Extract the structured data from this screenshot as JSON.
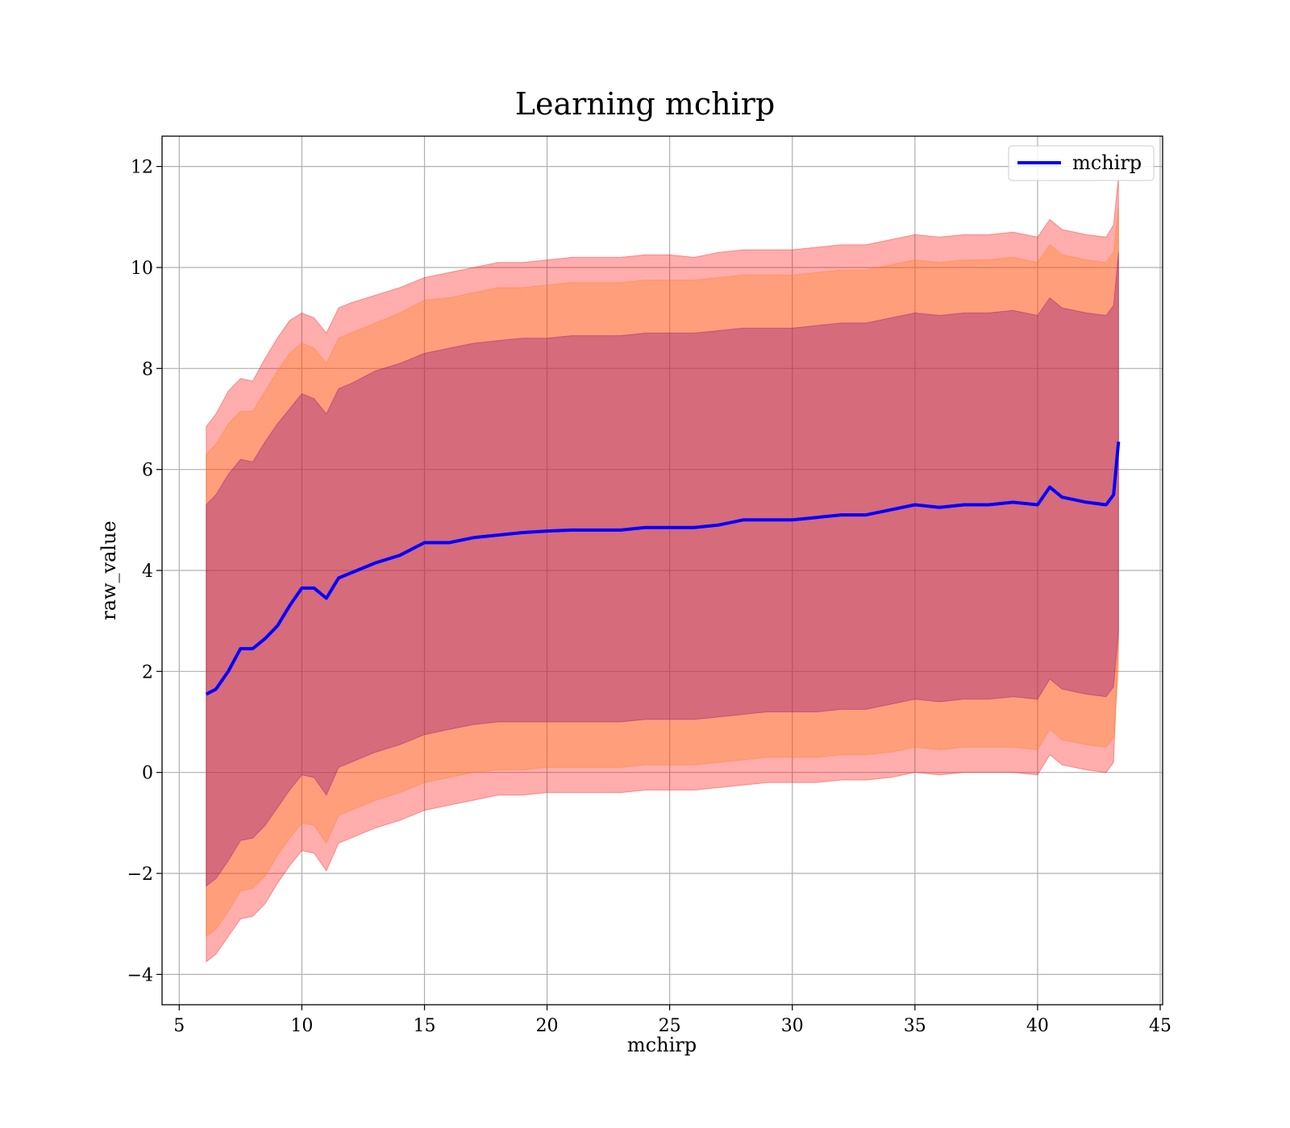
{
  "chart_data": {
    "type": "area",
    "title": "Learning mchirp",
    "xlabel": "mchirp",
    "ylabel": "raw_value",
    "xlim": [
      4.3,
      45.1
    ],
    "ylim": [
      -4.6,
      12.6
    ],
    "xticks": [
      5,
      10,
      15,
      20,
      25,
      30,
      35,
      40,
      45
    ],
    "yticks": [
      -4,
      -2,
      0,
      2,
      4,
      6,
      8,
      10,
      12
    ],
    "xtick_labels": [
      "5",
      "10",
      "15",
      "20",
      "25",
      "30",
      "35",
      "40",
      "45"
    ],
    "ytick_labels": [
      "−4",
      "−2",
      "0",
      "2",
      "4",
      "6",
      "8",
      "10",
      "12"
    ],
    "grid": true,
    "legend": {
      "position": "top-right",
      "entries": [
        "mchirp"
      ]
    },
    "series": [
      {
        "name": "mchirp",
        "kind": "line",
        "color": "#0000ff",
        "x": [
          6.1,
          6.5,
          7.0,
          7.5,
          8.0,
          8.5,
          9.0,
          9.5,
          10.0,
          10.5,
          11.0,
          11.5,
          12.0,
          13.0,
          14.0,
          15.0,
          16.0,
          17.0,
          18.0,
          19.0,
          20.0,
          21.0,
          22.0,
          23.0,
          24.0,
          25.0,
          26.0,
          27.0,
          28.0,
          29.0,
          30.0,
          31.0,
          32.0,
          33.0,
          34.0,
          35.0,
          36.0,
          37.0,
          38.0,
          39.0,
          40.0,
          40.5,
          41.0,
          42.0,
          42.8,
          43.1,
          43.3
        ],
        "y": [
          1.55,
          1.65,
          2.0,
          2.45,
          2.45,
          2.65,
          2.9,
          3.3,
          3.65,
          3.65,
          3.45,
          3.85,
          3.95,
          4.15,
          4.3,
          4.55,
          4.55,
          4.65,
          4.7,
          4.75,
          4.78,
          4.8,
          4.8,
          4.8,
          4.85,
          4.85,
          4.85,
          4.9,
          5.0,
          5.0,
          5.0,
          5.05,
          5.1,
          5.1,
          5.2,
          5.3,
          5.25,
          5.3,
          5.3,
          5.35,
          5.3,
          5.65,
          5.45,
          5.35,
          5.3,
          5.5,
          6.55
        ]
      },
      {
        "kind": "band",
        "color": "#ff0000",
        "x": [
          6.1,
          6.5,
          7.0,
          7.5,
          8.0,
          8.5,
          9.0,
          9.5,
          10.0,
          10.5,
          11.0,
          11.5,
          12.0,
          13.0,
          14.0,
          15.0,
          16.0,
          17.0,
          18.0,
          19.0,
          20.0,
          21.0,
          22.0,
          23.0,
          24.0,
          25.0,
          26.0,
          27.0,
          28.0,
          29.0,
          30.0,
          31.0,
          32.0,
          33.0,
          34.0,
          35.0,
          36.0,
          37.0,
          38.0,
          39.0,
          40.0,
          40.5,
          41.0,
          42.0,
          42.8,
          43.1,
          43.3
        ],
        "upper": [
          6.85,
          7.1,
          7.55,
          7.8,
          7.75,
          8.2,
          8.6,
          8.95,
          9.1,
          9.0,
          8.7,
          9.2,
          9.3,
          9.45,
          9.6,
          9.8,
          9.9,
          10.0,
          10.1,
          10.1,
          10.15,
          10.2,
          10.2,
          10.2,
          10.25,
          10.25,
          10.2,
          10.3,
          10.35,
          10.35,
          10.35,
          10.4,
          10.45,
          10.45,
          10.55,
          10.65,
          10.6,
          10.65,
          10.65,
          10.7,
          10.6,
          10.95,
          10.75,
          10.65,
          10.6,
          10.85,
          11.8
        ],
        "lower": [
          -3.75,
          -3.6,
          -3.25,
          -2.9,
          -2.85,
          -2.6,
          -2.2,
          -1.85,
          -1.55,
          -1.6,
          -1.95,
          -1.4,
          -1.3,
          -1.1,
          -0.95,
          -0.75,
          -0.65,
          -0.55,
          -0.45,
          -0.45,
          -0.4,
          -0.4,
          -0.4,
          -0.4,
          -0.35,
          -0.35,
          -0.35,
          -0.3,
          -0.25,
          -0.2,
          -0.2,
          -0.2,
          -0.15,
          -0.15,
          -0.1,
          0.0,
          -0.05,
          0.0,
          0.0,
          0.0,
          -0.05,
          0.35,
          0.15,
          0.05,
          0.0,
          0.2,
          2.6
        ]
      },
      {
        "kind": "band",
        "color": "#ff7f0e",
        "x": [
          6.1,
          6.5,
          7.0,
          7.5,
          8.0,
          8.5,
          9.0,
          9.5,
          10.0,
          10.5,
          11.0,
          11.5,
          12.0,
          13.0,
          14.0,
          15.0,
          16.0,
          17.0,
          18.0,
          19.0,
          20.0,
          21.0,
          22.0,
          23.0,
          24.0,
          25.0,
          26.0,
          27.0,
          28.0,
          29.0,
          30.0,
          31.0,
          32.0,
          33.0,
          34.0,
          35.0,
          36.0,
          37.0,
          38.0,
          39.0,
          40.0,
          40.5,
          41.0,
          42.0,
          42.8,
          43.1,
          43.3
        ],
        "upper": [
          6.3,
          6.5,
          6.9,
          7.15,
          7.15,
          7.55,
          7.95,
          8.3,
          8.5,
          8.4,
          8.1,
          8.6,
          8.7,
          8.9,
          9.1,
          9.35,
          9.4,
          9.5,
          9.6,
          9.6,
          9.65,
          9.7,
          9.7,
          9.7,
          9.75,
          9.75,
          9.75,
          9.8,
          9.85,
          9.85,
          9.85,
          9.9,
          9.95,
          9.95,
          10.05,
          10.15,
          10.1,
          10.15,
          10.15,
          10.2,
          10.1,
          10.45,
          10.25,
          10.15,
          10.1,
          10.3,
          11.2
        ],
        "lower": [
          -3.25,
          -3.1,
          -2.75,
          -2.35,
          -2.3,
          -2.05,
          -1.65,
          -1.3,
          -1.0,
          -1.05,
          -1.4,
          -0.85,
          -0.75,
          -0.55,
          -0.4,
          -0.2,
          -0.1,
          0.0,
          0.05,
          0.05,
          0.1,
          0.1,
          0.1,
          0.1,
          0.15,
          0.15,
          0.15,
          0.2,
          0.25,
          0.3,
          0.3,
          0.3,
          0.35,
          0.35,
          0.4,
          0.5,
          0.45,
          0.5,
          0.5,
          0.5,
          0.45,
          0.85,
          0.65,
          0.55,
          0.5,
          0.7,
          2.0
        ]
      },
      {
        "kind": "band",
        "color": "#800080",
        "x": [
          6.1,
          6.5,
          7.0,
          7.5,
          8.0,
          8.5,
          9.0,
          9.5,
          10.0,
          10.5,
          11.0,
          11.5,
          12.0,
          13.0,
          14.0,
          15.0,
          16.0,
          17.0,
          18.0,
          19.0,
          20.0,
          21.0,
          22.0,
          23.0,
          24.0,
          25.0,
          26.0,
          27.0,
          28.0,
          29.0,
          30.0,
          31.0,
          32.0,
          33.0,
          34.0,
          35.0,
          36.0,
          37.0,
          38.0,
          39.0,
          40.0,
          40.5,
          41.0,
          42.0,
          42.8,
          43.1,
          43.3
        ],
        "upper": [
          5.3,
          5.5,
          5.9,
          6.2,
          6.15,
          6.55,
          6.9,
          7.2,
          7.5,
          7.4,
          7.1,
          7.6,
          7.7,
          7.95,
          8.1,
          8.3,
          8.4,
          8.5,
          8.55,
          8.6,
          8.6,
          8.65,
          8.65,
          8.65,
          8.7,
          8.7,
          8.7,
          8.75,
          8.8,
          8.8,
          8.8,
          8.85,
          8.9,
          8.9,
          9.0,
          9.1,
          9.05,
          9.1,
          9.1,
          9.15,
          9.05,
          9.4,
          9.2,
          9.1,
          9.05,
          9.25,
          10.3
        ],
        "lower": [
          -2.25,
          -2.1,
          -1.75,
          -1.35,
          -1.3,
          -1.05,
          -0.7,
          -0.35,
          -0.05,
          -0.1,
          -0.45,
          0.1,
          0.2,
          0.4,
          0.55,
          0.75,
          0.85,
          0.95,
          1.0,
          1.0,
          1.0,
          1.0,
          1.0,
          1.0,
          1.05,
          1.05,
          1.05,
          1.1,
          1.15,
          1.2,
          1.2,
          1.2,
          1.25,
          1.25,
          1.35,
          1.45,
          1.4,
          1.45,
          1.45,
          1.5,
          1.45,
          1.85,
          1.65,
          1.55,
          1.5,
          1.7,
          2.8
        ]
      }
    ]
  }
}
